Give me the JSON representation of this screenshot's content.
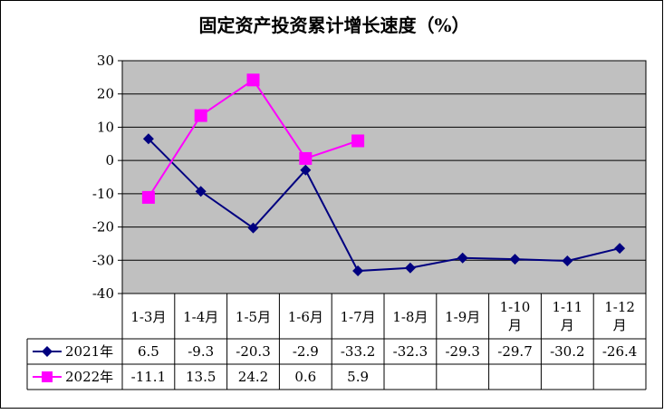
{
  "chart_data": {
    "type": "line",
    "title": "固定资产投资累计增长速度（%）",
    "categories": [
      "1-3月",
      "1-4月",
      "1-5月",
      "1-6月",
      "1-7月",
      "1-8月",
      "1-9月",
      "1-10月",
      "1-11月",
      "1-12月"
    ],
    "category_lines": [
      [
        "1-3月"
      ],
      [
        "1-4月"
      ],
      [
        "1-5月"
      ],
      [
        "1-6月"
      ],
      [
        "1-7月"
      ],
      [
        "1-8月"
      ],
      [
        "1-9月"
      ],
      [
        "1-10",
        "月"
      ],
      [
        "1-11",
        "月"
      ],
      [
        "1-12",
        "月"
      ]
    ],
    "y_ticks": [
      "30",
      "20",
      "10",
      "0",
      "-10",
      "-20",
      "-30",
      "-40"
    ],
    "ylim": [
      -40,
      30
    ],
    "grid": true,
    "legend": "data-table",
    "series": [
      {
        "name": "2021年",
        "color": "#000080",
        "marker": "diamond",
        "values": [
          6.5,
          -9.3,
          -20.3,
          -2.9,
          -33.2,
          -32.3,
          -29.3,
          -29.7,
          -30.2,
          -26.4
        ],
        "labels": [
          "6.5",
          "-9.3",
          "-20.3",
          "-2.9",
          "-33.2",
          "-32.3",
          "-29.3",
          "-29.7",
          "-30.2",
          "-26.4"
        ]
      },
      {
        "name": "2022年",
        "color": "#ff00ff",
        "marker": "square",
        "values": [
          -11.1,
          13.5,
          24.2,
          0.6,
          5.9,
          null,
          null,
          null,
          null,
          null
        ],
        "labels": [
          "-11.1",
          "13.5",
          "24.2",
          "0.6",
          "5.9",
          "",
          "",
          "",
          "",
          ""
        ]
      }
    ]
  }
}
